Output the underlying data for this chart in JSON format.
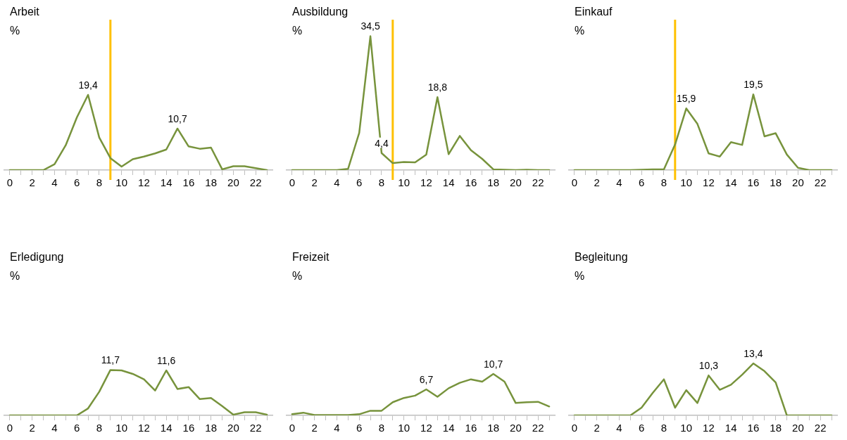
{
  "chart_data": [
    {
      "type": "line",
      "title": "Arbeit",
      "ylabel": "%",
      "x": [
        0,
        1,
        2,
        3,
        4,
        5,
        6,
        7,
        8,
        9,
        10,
        11,
        12,
        13,
        14,
        15,
        16,
        17,
        18,
        19,
        20,
        21,
        22,
        23
      ],
      "xlim": [
        -0.5,
        23.5
      ],
      "xticks": [
        0,
        {
          "value": 1,
          "label": null
        },
        2,
        {
          "value": 3,
          "label": null
        },
        4,
        {
          "value": 5,
          "label": null
        },
        6,
        {
          "value": 7,
          "label": null
        },
        8,
        {
          "value": 9,
          "label": null
        },
        10,
        {
          "value": 11,
          "label": null
        },
        12,
        {
          "value": 13,
          "label": null
        },
        14,
        {
          "value": 15,
          "label": null
        },
        16,
        {
          "value": 17,
          "label": null
        },
        18,
        {
          "value": 19,
          "label": null
        },
        20,
        {
          "value": 21,
          "label": null
        },
        22,
        {
          "value": 23,
          "label": null
        }
      ],
      "tick_labels": "x",
      "grid": false,
      "legend": false,
      "marker": "none",
      "ref_lines": [
        {
          "axis": "x",
          "value": 9,
          "color": "#ffc000"
        }
      ],
      "series": [
        {
          "color": "#77933c",
          "values": [
            0,
            0,
            0,
            0,
            1.5,
            6.4,
            13.6,
            19.4,
            8.4,
            3.1,
            0.9,
            2.8,
            3.5,
            4.3,
            5.3,
            10.7,
            6.1,
            5.5,
            5.8,
            0.2,
            1.0,
            1.0,
            0.5,
            0
          ],
          "value_labels": [
            null,
            null,
            null,
            null,
            null,
            null,
            null,
            "19,4",
            null,
            null,
            null,
            null,
            null,
            null,
            null,
            "10,7",
            null,
            null,
            null,
            null,
            null,
            null,
            null,
            null
          ]
        }
      ]
    },
    {
      "type": "line",
      "title": "Ausbildung",
      "ylabel": "%",
      "x": [
        0,
        1,
        2,
        3,
        4,
        5,
        6,
        7,
        8,
        9,
        10,
        11,
        12,
        13,
        14,
        15,
        16,
        17,
        18,
        19,
        20,
        21,
        22,
        23
      ],
      "xlim": [
        -0.5,
        23.5
      ],
      "xticks": [
        0,
        {
          "value": 1,
          "label": null
        },
        2,
        {
          "value": 3,
          "label": null
        },
        4,
        {
          "value": 5,
          "label": null
        },
        6,
        {
          "value": 7,
          "label": null
        },
        8,
        {
          "value": 9,
          "label": null
        },
        10,
        {
          "value": 11,
          "label": null
        },
        12,
        {
          "value": 13,
          "label": null
        },
        14,
        {
          "value": 15,
          "label": null
        },
        16,
        {
          "value": 17,
          "label": null
        },
        18,
        {
          "value": 19,
          "label": null
        },
        20,
        {
          "value": 21,
          "label": null
        },
        22,
        {
          "value": 23,
          "label": null
        }
      ],
      "tick_labels": "x",
      "grid": false,
      "legend": false,
      "marker": "none",
      "ref_lines": [
        {
          "axis": "x",
          "value": 9,
          "color": "#ffc000"
        }
      ],
      "series": [
        {
          "color": "#77933c",
          "values": [
            0,
            0,
            0,
            0,
            0,
            0.3,
            9.6,
            34.5,
            4.4,
            1.8,
            2.1,
            2.0,
            4.0,
            18.8,
            4.1,
            8.8,
            5.1,
            2.9,
            0.2,
            0.1,
            0,
            0.1,
            0,
            0
          ],
          "value_labels": [
            null,
            null,
            null,
            null,
            null,
            null,
            null,
            "34,5",
            "4,4",
            null,
            null,
            null,
            null,
            "18,8",
            null,
            null,
            null,
            null,
            null,
            null,
            null,
            null,
            null,
            null
          ]
        }
      ]
    },
    {
      "type": "line",
      "title": "Einkauf",
      "ylabel": "%",
      "x": [
        0,
        1,
        2,
        3,
        4,
        5,
        6,
        7,
        8,
        9,
        10,
        11,
        12,
        13,
        14,
        15,
        16,
        17,
        18,
        19,
        20,
        21,
        22,
        23
      ],
      "xlim": [
        -0.5,
        23.5
      ],
      "xticks": [
        0,
        {
          "value": 1,
          "label": null
        },
        2,
        {
          "value": 3,
          "label": null
        },
        4,
        {
          "value": 5,
          "label": null
        },
        6,
        {
          "value": 7,
          "label": null
        },
        8,
        {
          "value": 9,
          "label": null
        },
        10,
        {
          "value": 11,
          "label": null
        },
        12,
        {
          "value": 13,
          "label": null
        },
        14,
        {
          "value": 15,
          "label": null
        },
        16,
        {
          "value": 17,
          "label": null
        },
        18,
        {
          "value": 19,
          "label": null
        },
        20,
        {
          "value": 21,
          "label": null
        },
        22,
        {
          "value": 23,
          "label": null
        }
      ],
      "tick_labels": "x",
      "grid": false,
      "legend": false,
      "marker": "none",
      "ref_lines": [
        {
          "axis": "x",
          "value": 9,
          "color": "#ffc000"
        }
      ],
      "series": [
        {
          "color": "#77933c",
          "values": [
            0,
            0,
            0,
            0,
            0,
            0,
            0.1,
            0.2,
            0.2,
            6.6,
            15.9,
            11.9,
            4.3,
            3.5,
            7.2,
            6.5,
            19.5,
            8.7,
            9.5,
            4.0,
            0.6,
            0,
            0,
            0
          ],
          "value_labels": [
            null,
            null,
            null,
            null,
            null,
            null,
            null,
            null,
            null,
            null,
            "15,9",
            null,
            null,
            null,
            null,
            null,
            "19,5",
            null,
            null,
            null,
            null,
            null,
            null,
            null
          ]
        }
      ]
    },
    {
      "type": "line",
      "title": "Erledigung",
      "ylabel": "%",
      "x": [
        0,
        1,
        2,
        3,
        4,
        5,
        6,
        7,
        8,
        9,
        10,
        11,
        12,
        13,
        14,
        15,
        16,
        17,
        18,
        19,
        20,
        21,
        22,
        23
      ],
      "xlim": [
        -0.5,
        23.5
      ],
      "xticks": [
        0,
        {
          "value": 1,
          "label": null
        },
        2,
        {
          "value": 3,
          "label": null
        },
        4,
        {
          "value": 5,
          "label": null
        },
        6,
        {
          "value": 7,
          "label": null
        },
        8,
        {
          "value": 9,
          "label": null
        },
        10,
        {
          "value": 11,
          "label": null
        },
        12,
        {
          "value": 13,
          "label": null
        },
        14,
        {
          "value": 15,
          "label": null
        },
        16,
        {
          "value": 17,
          "label": null
        },
        18,
        {
          "value": 19,
          "label": null
        },
        20,
        {
          "value": 21,
          "label": null
        },
        22,
        {
          "value": 23,
          "label": null
        }
      ],
      "tick_labels": "x",
      "grid": false,
      "legend": false,
      "marker": "none",
      "series": [
        {
          "color": "#77933c",
          "values": [
            0,
            0,
            0,
            0,
            0,
            0,
            0,
            1.8,
            6.1,
            11.7,
            11.6,
            10.7,
            9.3,
            6.4,
            11.6,
            6.8,
            7.3,
            4.2,
            4.5,
            2.4,
            0.2,
            0.8,
            0.8,
            0.2
          ],
          "value_labels": [
            null,
            null,
            null,
            null,
            null,
            null,
            null,
            null,
            null,
            "11,7",
            null,
            null,
            null,
            null,
            "11,6",
            null,
            null,
            null,
            null,
            null,
            null,
            null,
            null,
            null
          ]
        }
      ]
    },
    {
      "type": "line",
      "title": "Freizeit",
      "ylabel": "%",
      "x": [
        0,
        1,
        2,
        3,
        4,
        5,
        6,
        7,
        8,
        9,
        10,
        11,
        12,
        13,
        14,
        15,
        16,
        17,
        18,
        19,
        20,
        21,
        22,
        23
      ],
      "xlim": [
        -0.5,
        23.5
      ],
      "xticks": [
        0,
        {
          "value": 1,
          "label": null
        },
        2,
        {
          "value": 3,
          "label": null
        },
        4,
        {
          "value": 5,
          "label": null
        },
        6,
        {
          "value": 7,
          "label": null
        },
        8,
        {
          "value": 9,
          "label": null
        },
        10,
        {
          "value": 11,
          "label": null
        },
        12,
        {
          "value": 13,
          "label": null
        },
        14,
        {
          "value": 15,
          "label": null
        },
        16,
        {
          "value": 17,
          "label": null
        },
        18,
        {
          "value": 19,
          "label": null
        },
        20,
        {
          "value": 21,
          "label": null
        },
        22,
        {
          "value": 23,
          "label": null
        }
      ],
      "tick_labels": "x",
      "grid": false,
      "legend": false,
      "marker": "none",
      "series": [
        {
          "color": "#77933c",
          "values": [
            0.3,
            0.7,
            0.1,
            0.1,
            0.1,
            0.1,
            0.3,
            1.2,
            1.2,
            3.4,
            4.5,
            5.1,
            6.7,
            4.8,
            7.0,
            8.4,
            9.3,
            8.7,
            10.7,
            8.7,
            3.2,
            3.4,
            3.5,
            2.3
          ],
          "value_labels": [
            null,
            null,
            null,
            null,
            null,
            null,
            null,
            null,
            null,
            null,
            null,
            null,
            "6,7",
            null,
            null,
            null,
            null,
            null,
            "10,7",
            null,
            null,
            null,
            null,
            null
          ]
        }
      ]
    },
    {
      "type": "line",
      "title": "Begleitung",
      "ylabel": "%",
      "x": [
        0,
        1,
        2,
        3,
        4,
        5,
        6,
        7,
        8,
        9,
        10,
        11,
        12,
        13,
        14,
        15,
        16,
        17,
        18,
        19,
        20,
        21,
        22,
        23
      ],
      "xlim": [
        -0.5,
        23.5
      ],
      "xticks": [
        0,
        {
          "value": 1,
          "label": null
        },
        2,
        {
          "value": 3,
          "label": null
        },
        4,
        {
          "value": 5,
          "label": null
        },
        6,
        {
          "value": 7,
          "label": null
        },
        8,
        {
          "value": 9,
          "label": null
        },
        10,
        {
          "value": 11,
          "label": null
        },
        12,
        {
          "value": 13,
          "label": null
        },
        14,
        {
          "value": 15,
          "label": null
        },
        16,
        {
          "value": 17,
          "label": null
        },
        18,
        {
          "value": 19,
          "label": null
        },
        20,
        {
          "value": 21,
          "label": null
        },
        22,
        {
          "value": 23,
          "label": null
        }
      ],
      "tick_labels": "x",
      "grid": false,
      "legend": false,
      "marker": "none",
      "series": [
        {
          "color": "#77933c",
          "values": [
            0,
            0,
            0,
            0,
            0,
            0,
            2.0,
            5.8,
            9.3,
            2.0,
            6.5,
            3.2,
            10.3,
            6.6,
            7.9,
            10.5,
            13.4,
            11.4,
            8.5,
            0,
            0,
            0,
            0,
            0
          ],
          "value_labels": [
            null,
            null,
            null,
            null,
            null,
            null,
            null,
            null,
            null,
            null,
            null,
            null,
            "10,3",
            null,
            null,
            null,
            "13,4",
            null,
            null,
            null,
            null,
            null,
            null,
            null
          ]
        }
      ]
    }
  ]
}
